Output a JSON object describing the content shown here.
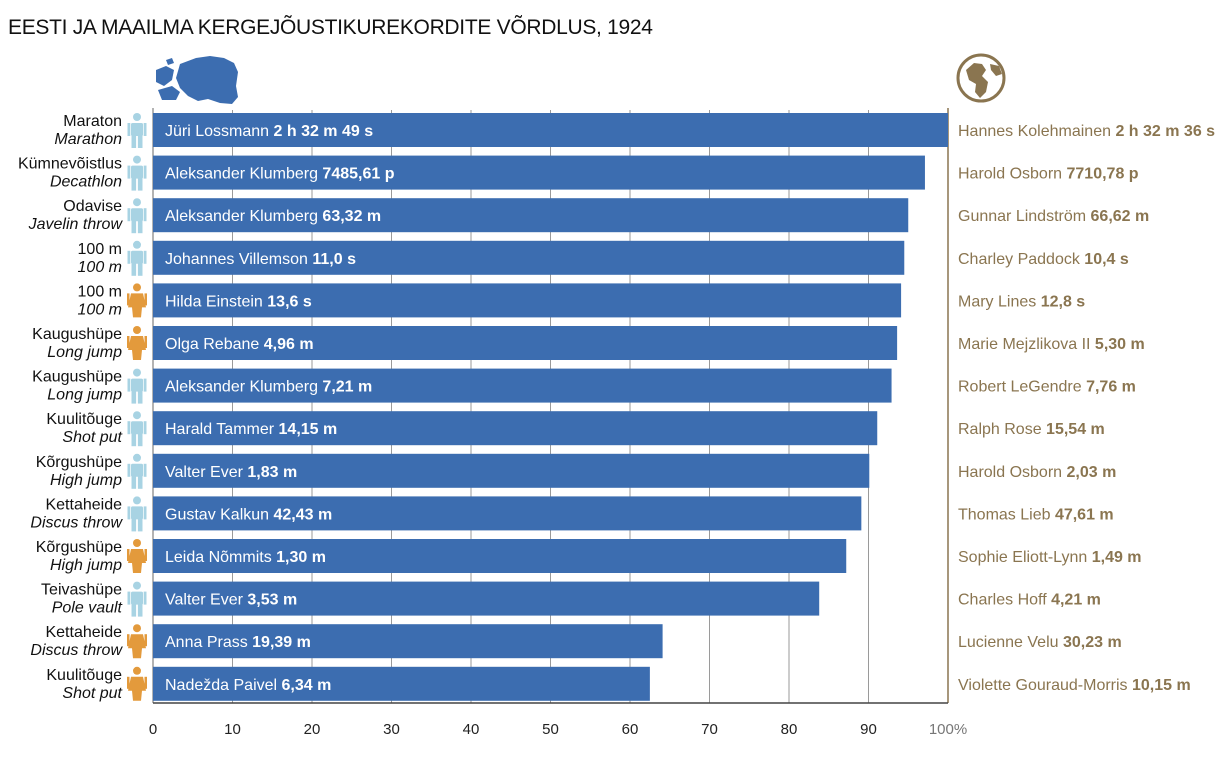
{
  "title": "EESTI JA MAAILMA KERGEJÕUSTIKUREKORDITE VÕRDLUS, 1924",
  "colors": {
    "bar": "#3c6db0",
    "male_icon": "#a8d3e3",
    "female_icon": "#e39a3c",
    "world_text": "#8a7550",
    "grid": "#9a9a9a",
    "estonia_map": "#3c6db0",
    "globe": "#8a7550"
  },
  "icons": {
    "estonia": "estonia-map-icon",
    "world": "globe-icon",
    "male": "male-athlete-icon",
    "female": "female-athlete-icon"
  },
  "chart_data": {
    "type": "bar",
    "orientation": "horizontal",
    "title": "EESTI JA MAAILMA KERGEJÕUSTIKUREKORDITE VÕRDLUS, 1924",
    "xlim": [
      0,
      100
    ],
    "xticks": [
      "0",
      "10",
      "20",
      "30",
      "40",
      "50",
      "60",
      "70",
      "80",
      "90",
      "100%"
    ],
    "grid": true,
    "rows": [
      {
        "cat_et": "Maraton",
        "cat_en": "Marathon",
        "gender": "male",
        "value": 100,
        "est_name": "Jüri Lossmann",
        "est_result": "2 h 32 m 49 s",
        "world_name": "Hannes Kolehmainen",
        "world_result": "2 h 32 m 36 s"
      },
      {
        "cat_et": "Kümnevõistlus",
        "cat_en": "Decathlon",
        "gender": "male",
        "value": 97.1,
        "est_name": "Aleksander Klumberg",
        "est_result": "7485,61 p",
        "world_name": "Harold Osborn",
        "world_result": "7710,78 p"
      },
      {
        "cat_et": "Odavise",
        "cat_en": "Javelin throw",
        "gender": "male",
        "value": 95.0,
        "est_name": "Aleksander Klumberg",
        "est_result": "63,32 m",
        "world_name": "Gunnar Lindström",
        "world_result": "66,62 m"
      },
      {
        "cat_et": "100 m",
        "cat_en": "100 m",
        "gender": "male",
        "value": 94.5,
        "est_name": "Johannes Villemson",
        "est_result": "11,0 s",
        "world_name": "Charley Paddock",
        "world_result": "10,4 s"
      },
      {
        "cat_et": "100 m",
        "cat_en": "100 m",
        "gender": "female",
        "value": 94.1,
        "est_name": "Hilda Einstein",
        "est_result": "13,6 s",
        "world_name": "Mary Lines",
        "world_result": "12,8 s"
      },
      {
        "cat_et": "Kaugushüpe",
        "cat_en": "Long jump",
        "gender": "female",
        "value": 93.6,
        "est_name": "Olga Rebane",
        "est_result": "4,96 m",
        "world_name": "Marie Mejzlikova II",
        "world_result": "5,30 m"
      },
      {
        "cat_et": "Kaugushüpe",
        "cat_en": "Long jump",
        "gender": "male",
        "value": 92.9,
        "est_name": "Aleksander Klumberg",
        "est_result": "7,21 m",
        "world_name": "Robert LeGendre",
        "world_result": "7,76 m"
      },
      {
        "cat_et": "Kuulitõuge",
        "cat_en": "Shot put",
        "gender": "male",
        "value": 91.1,
        "est_name": "Harald Tammer",
        "est_result": "14,15 m",
        "world_name": "Ralph Rose",
        "world_result": "15,54 m"
      },
      {
        "cat_et": "Kõrgushüpe",
        "cat_en": "High jump",
        "gender": "male",
        "value": 90.1,
        "est_name": "Valter Ever",
        "est_result": "1,83 m",
        "world_name": "Harold Osborn",
        "world_result": "2,03 m"
      },
      {
        "cat_et": "Kettaheide",
        "cat_en": "Discus throw",
        "gender": "male",
        "value": 89.1,
        "est_name": "Gustav Kalkun",
        "est_result": "42,43 m",
        "world_name": "Thomas Lieb",
        "world_result": "47,61 m"
      },
      {
        "cat_et": "Kõrgushüpe",
        "cat_en": "High jump",
        "gender": "female",
        "value": 87.2,
        "est_name": "Leida Nõmmits",
        "est_result": "1,30 m",
        "world_name": "Sophie Eliott-Lynn",
        "world_result": "1,49 m"
      },
      {
        "cat_et": "Teivashüpe",
        "cat_en": "Pole vault",
        "gender": "male",
        "value": 83.8,
        "est_name": "Valter Ever",
        "est_result": "3,53 m",
        "world_name": "Charles Hoff",
        "world_result": "4,21 m"
      },
      {
        "cat_et": "Kettaheide",
        "cat_en": "Discus throw",
        "gender": "female",
        "value": 64.1,
        "est_name": "Anna Prass",
        "est_result": "19,39 m",
        "world_name": "Lucienne Velu",
        "world_result": "30,23 m"
      },
      {
        "cat_et": "Kuulitõuge",
        "cat_en": "Shot put",
        "gender": "female",
        "value": 62.5,
        "est_name": "Nadežda Paivel",
        "est_result": "6,34 m",
        "world_name": "Violette Gouraud-Morris",
        "world_result": "10,15 m"
      }
    ]
  }
}
